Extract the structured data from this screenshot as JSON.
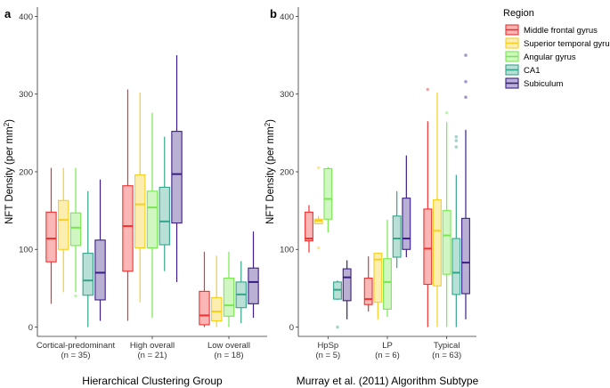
{
  "chart_data": [
    {
      "type": "box",
      "panel_label": "a",
      "xlabel": "Hierarchical Clustering Group",
      "ylabel": "NFT Density (per mm",
      "ylabel_sup": "2",
      "ylabel_tail": ")",
      "ylim": [
        -12,
        412
      ],
      "yticks": [
        0,
        100,
        200,
        300,
        400
      ],
      "groups": [
        {
          "label": "Cortical-predominant",
          "n_label": "(n = 35)",
          "boxes": [
            {
              "region": "Middle frontal gyrus",
              "whisker_low": 30,
              "q1": 84,
              "median": 114,
              "q3": 148,
              "whisker_high": 205,
              "outliers": []
            },
            {
              "region": "Superior temporal gyrus",
              "whisker_low": 45,
              "q1": 100,
              "median": 138,
              "q3": 163,
              "whisker_high": 205,
              "outliers": []
            },
            {
              "region": "Angular gyrus",
              "whisker_low": 45,
              "q1": 105,
              "median": 128,
              "q3": 147,
              "whisker_high": 205,
              "outliers": [
                40
              ]
            },
            {
              "region": "CA1",
              "whisker_low": 0,
              "q1": 41,
              "median": 60,
              "q3": 95,
              "whisker_high": 175,
              "outliers": []
            },
            {
              "region": "Subiculum",
              "whisker_low": 8,
              "q1": 35,
              "median": 70,
              "q3": 112,
              "whisker_high": 190,
              "outliers": []
            }
          ]
        },
        {
          "label": "High overall",
          "n_label": "(n = 21)",
          "boxes": [
            {
              "region": "Middle frontal gyrus",
              "whisker_low": 8,
              "q1": 72,
              "median": 130,
              "q3": 182,
              "whisker_high": 306,
              "outliers": []
            },
            {
              "region": "Superior temporal gyrus",
              "whisker_low": 32,
              "q1": 102,
              "median": 158,
              "q3": 196,
              "whisker_high": 302,
              "outliers": []
            },
            {
              "region": "Angular gyrus",
              "whisker_low": 12,
              "q1": 102,
              "median": 154,
              "q3": 175,
              "whisker_high": 276,
              "outliers": []
            },
            {
              "region": "CA1",
              "whisker_low": 72,
              "q1": 106,
              "median": 136,
              "q3": 180,
              "whisker_high": 245,
              "outliers": []
            },
            {
              "region": "Subiculum",
              "whisker_low": 58,
              "q1": 134,
              "median": 197,
              "q3": 252,
              "whisker_high": 350,
              "outliers": []
            }
          ]
        },
        {
          "label": "Low overall",
          "n_label": "(n = 18)",
          "boxes": [
            {
              "region": "Middle frontal gyrus",
              "whisker_low": 0,
              "q1": 3,
              "median": 15,
              "q3": 46,
              "whisker_high": 97,
              "outliers": []
            },
            {
              "region": "Superior temporal gyrus",
              "whisker_low": 0,
              "q1": 8,
              "median": 20,
              "q3": 38,
              "whisker_high": 92,
              "outliers": []
            },
            {
              "region": "Angular gyrus",
              "whisker_low": 0,
              "q1": 14,
              "median": 28,
              "q3": 63,
              "whisker_high": 97,
              "outliers": []
            },
            {
              "region": "CA1",
              "whisker_low": 5,
              "q1": 25,
              "median": 42,
              "q3": 58,
              "whisker_high": 85,
              "outliers": []
            },
            {
              "region": "Subiculum",
              "whisker_low": 12,
              "q1": 30,
              "median": 58,
              "q3": 76,
              "whisker_high": 123,
              "outliers": []
            }
          ]
        }
      ]
    },
    {
      "type": "box",
      "panel_label": "b",
      "xlabel": "Murray et al. (2011) Algorithm Subtype",
      "ylabel": "NFT Density (per mm",
      "ylabel_sup": "2",
      "ylabel_tail": ")",
      "ylim": [
        -12,
        412
      ],
      "yticks": [
        0,
        100,
        200,
        300,
        400
      ],
      "groups": [
        {
          "label": "HpSp",
          "n_label": "(n = 5)",
          "boxes": [
            {
              "region": "Middle frontal gyrus",
              "whisker_low": 96,
              "q1": 111,
              "median": 114,
              "q3": 148,
              "whisker_high": 157,
              "outliers": []
            },
            {
              "region": "Superior temporal gyrus",
              "whisker_low": 132,
              "q1": 133,
              "median": 137,
              "q3": 139,
              "whisker_high": 143,
              "outliers": [
                102,
                205
              ]
            },
            {
              "region": "Angular gyrus",
              "whisker_low": 122,
              "q1": 139,
              "median": 165,
              "q3": 204,
              "whisker_high": 206,
              "outliers": []
            },
            {
              "region": "CA1",
              "whisker_low": 35,
              "q1": 36,
              "median": 48,
              "q3": 58,
              "whisker_high": 60,
              "outliers": [
                0
              ]
            },
            {
              "region": "Subiculum",
              "whisker_low": 10,
              "q1": 34,
              "median": 64,
              "q3": 75,
              "whisker_high": 86,
              "outliers": []
            }
          ]
        },
        {
          "label": "LP",
          "n_label": "(n = 6)",
          "boxes": [
            {
              "region": "Middle frontal gyrus",
              "whisker_low": 20,
              "q1": 29,
              "median": 36,
              "q3": 63,
              "whisker_high": 91,
              "outliers": []
            },
            {
              "region": "Superior temporal gyrus",
              "whisker_low": 10,
              "q1": 32,
              "median": 87,
              "q3": 95,
              "whisker_high": 96,
              "outliers": []
            },
            {
              "region": "Angular gyrus",
              "whisker_low": 13,
              "q1": 23,
              "median": 58,
              "q3": 88,
              "whisker_high": 138,
              "outliers": []
            },
            {
              "region": "CA1",
              "whisker_low": 76,
              "q1": 90,
              "median": 114,
              "q3": 143,
              "whisker_high": 175,
              "outliers": []
            },
            {
              "region": "Subiculum",
              "whisker_low": 90,
              "q1": 100,
              "median": 114,
              "q3": 166,
              "whisker_high": 221,
              "outliers": []
            }
          ]
        },
        {
          "label": "Typical",
          "n_label": "(n = 63)",
          "boxes": [
            {
              "region": "Middle frontal gyrus",
              "whisker_low": 0,
              "q1": 55,
              "median": 101,
              "q3": 152,
              "whisker_high": 265,
              "outliers": [
                306
              ]
            },
            {
              "region": "Superior temporal gyrus",
              "whisker_low": 0,
              "q1": 53,
              "median": 124,
              "q3": 164,
              "whisker_high": 302,
              "outliers": []
            },
            {
              "region": "Angular gyrus",
              "whisker_low": 0,
              "q1": 68,
              "median": 118,
              "q3": 150,
              "whisker_high": 264,
              "outliers": [
                276
              ]
            },
            {
              "region": "CA1",
              "whisker_low": 0,
              "q1": 42,
              "median": 70,
              "q3": 114,
              "whisker_high": 196,
              "outliers": [
                232,
                240,
                245
              ]
            },
            {
              "region": "Subiculum",
              "whisker_low": 10,
              "q1": 43,
              "median": 83,
              "q3": 140,
              "whisker_high": 254,
              "outliers": [
                296,
                316,
                350
              ]
            }
          ]
        }
      ]
    }
  ],
  "legend": {
    "title": "Region",
    "items": [
      {
        "label": "Middle frontal gyrus",
        "color": "#f0312f"
      },
      {
        "label": "Superior temporal gyrus",
        "color": "#f7cf1c"
      },
      {
        "label": "Angular gyrus",
        "color": "#78e84f"
      },
      {
        "label": "CA1",
        "color": "#33a58a"
      },
      {
        "label": "Subiculum",
        "color": "#3a1d85"
      }
    ]
  }
}
